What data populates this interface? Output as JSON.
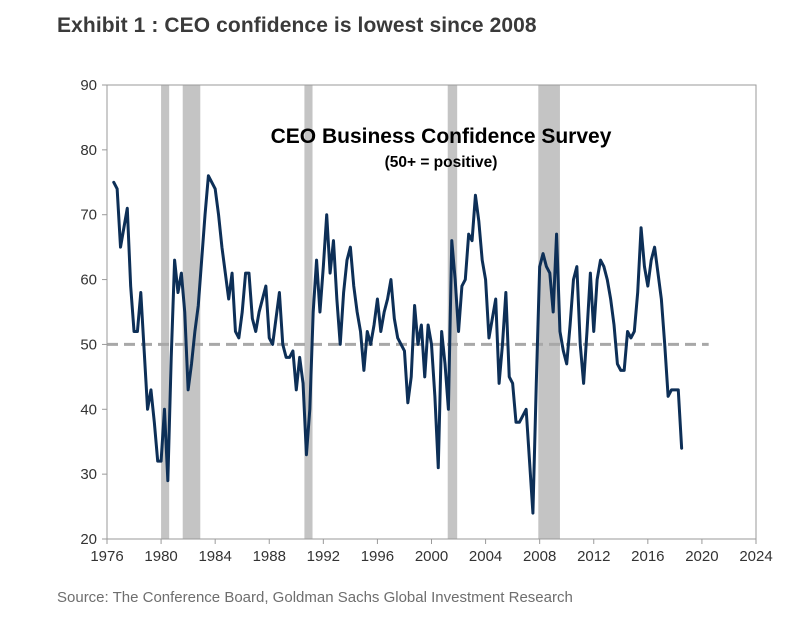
{
  "header": {
    "exhibit_title": "Exhibit 1 : CEO confidence is lowest since 2008"
  },
  "footer": {
    "source": "Source: The Conference Board, Goldman Sachs Global Investment Research"
  },
  "colors": {
    "line": "#0d2f57",
    "recession": "#c4c4c4",
    "reference": "#a8a8a8",
    "frame": "#9a9a9a"
  },
  "chart_data": {
    "type": "line",
    "title": "CEO Business Confidence Survey",
    "subtitle": "(50+ = positive)",
    "xlim": [
      1976,
      2024
    ],
    "ylim": [
      20,
      90
    ],
    "x_ticks": [
      1976,
      1980,
      1984,
      1988,
      1992,
      1996,
      2000,
      2004,
      2008,
      2012,
      2016,
      2020,
      2024
    ],
    "y_ticks": [
      20,
      30,
      40,
      50,
      60,
      70,
      80,
      90
    ],
    "grid": false,
    "reference_line": 50,
    "recession_shading": [
      [
        1980.0,
        1980.6
      ],
      [
        1981.6,
        1982.9
      ],
      [
        1990.6,
        1991.2
      ],
      [
        2001.2,
        2001.9
      ],
      [
        2007.9,
        2009.5
      ]
    ],
    "series": [
      {
        "values": [
          [
            1976.5,
            75
          ],
          [
            1976.75,
            74
          ],
          [
            1977.0,
            65
          ],
          [
            1977.25,
            68
          ],
          [
            1977.5,
            71
          ],
          [
            1977.75,
            59
          ],
          [
            1978.0,
            52
          ],
          [
            1978.25,
            52
          ],
          [
            1978.5,
            58
          ],
          [
            1978.75,
            49
          ],
          [
            1979.0,
            40
          ],
          [
            1979.25,
            43
          ],
          [
            1979.5,
            38
          ],
          [
            1979.75,
            32
          ],
          [
            1980.0,
            32
          ],
          [
            1980.25,
            40
          ],
          [
            1980.5,
            29
          ],
          [
            1980.75,
            48
          ],
          [
            1981.0,
            63
          ],
          [
            1981.25,
            58
          ],
          [
            1981.5,
            61
          ],
          [
            1981.75,
            55
          ],
          [
            1982.0,
            43
          ],
          [
            1982.25,
            47
          ],
          [
            1982.5,
            52
          ],
          [
            1982.75,
            56
          ],
          [
            1983.0,
            63
          ],
          [
            1983.25,
            70
          ],
          [
            1983.5,
            76
          ],
          [
            1983.75,
            75
          ],
          [
            1984.0,
            74
          ],
          [
            1984.25,
            70
          ],
          [
            1984.5,
            65
          ],
          [
            1984.75,
            61
          ],
          [
            1985.0,
            57
          ],
          [
            1985.25,
            61
          ],
          [
            1985.5,
            52
          ],
          [
            1985.75,
            51
          ],
          [
            1986.0,
            55
          ],
          [
            1986.25,
            61
          ],
          [
            1986.5,
            61
          ],
          [
            1986.75,
            54
          ],
          [
            1987.0,
            52
          ],
          [
            1987.25,
            55
          ],
          [
            1987.5,
            57
          ],
          [
            1987.75,
            59
          ],
          [
            1988.0,
            51
          ],
          [
            1988.25,
            50
          ],
          [
            1988.5,
            54
          ],
          [
            1988.75,
            58
          ],
          [
            1989.0,
            50
          ],
          [
            1989.25,
            48
          ],
          [
            1989.5,
            48
          ],
          [
            1989.75,
            49
          ],
          [
            1990.0,
            43
          ],
          [
            1990.25,
            48
          ],
          [
            1990.5,
            44
          ],
          [
            1990.75,
            33
          ],
          [
            1991.0,
            40
          ],
          [
            1991.25,
            55
          ],
          [
            1991.5,
            63
          ],
          [
            1991.75,
            55
          ],
          [
            1992.0,
            62
          ],
          [
            1992.25,
            70
          ],
          [
            1992.5,
            61
          ],
          [
            1992.75,
            66
          ],
          [
            1993.0,
            57
          ],
          [
            1993.25,
            50
          ],
          [
            1993.5,
            58
          ],
          [
            1993.75,
            63
          ],
          [
            1994.0,
            65
          ],
          [
            1994.25,
            59
          ],
          [
            1994.5,
            55
          ],
          [
            1994.75,
            52
          ],
          [
            1995.0,
            46
          ],
          [
            1995.25,
            52
          ],
          [
            1995.5,
            50
          ],
          [
            1995.75,
            53
          ],
          [
            1996.0,
            57
          ],
          [
            1996.25,
            52
          ],
          [
            1996.5,
            55
          ],
          [
            1996.75,
            57
          ],
          [
            1997.0,
            60
          ],
          [
            1997.25,
            54
          ],
          [
            1997.5,
            51
          ],
          [
            1997.75,
            50
          ],
          [
            1998.0,
            49
          ],
          [
            1998.25,
            41
          ],
          [
            1998.5,
            45
          ],
          [
            1998.75,
            56
          ],
          [
            1999.0,
            50
          ],
          [
            1999.25,
            53
          ],
          [
            1999.5,
            45
          ],
          [
            1999.75,
            53
          ],
          [
            2000.0,
            50
          ],
          [
            2000.25,
            42
          ],
          [
            2000.5,
            31
          ],
          [
            2000.75,
            52
          ],
          [
            2001.0,
            47
          ],
          [
            2001.25,
            40
          ],
          [
            2001.5,
            66
          ],
          [
            2001.75,
            60
          ],
          [
            2002.0,
            52
          ],
          [
            2002.25,
            59
          ],
          [
            2002.5,
            60
          ],
          [
            2002.75,
            67
          ],
          [
            2003.0,
            66
          ],
          [
            2003.25,
            73
          ],
          [
            2003.5,
            69
          ],
          [
            2003.75,
            63
          ],
          [
            2004.0,
            60
          ],
          [
            2004.25,
            51
          ],
          [
            2004.5,
            54
          ],
          [
            2004.75,
            57
          ],
          [
            2005.0,
            44
          ],
          [
            2005.25,
            50
          ],
          [
            2005.5,
            58
          ],
          [
            2005.75,
            45
          ],
          [
            2006.0,
            44
          ],
          [
            2006.25,
            38
          ],
          [
            2006.5,
            38
          ],
          [
            2006.75,
            39
          ],
          [
            2007.0,
            40
          ],
          [
            2007.25,
            32
          ],
          [
            2007.5,
            24
          ],
          [
            2007.75,
            44
          ],
          [
            2008.0,
            62
          ],
          [
            2008.25,
            64
          ],
          [
            2008.5,
            62
          ],
          [
            2008.75,
            61
          ],
          [
            2009.0,
            55
          ],
          [
            2009.25,
            67
          ],
          [
            2009.5,
            52
          ],
          [
            2009.75,
            49
          ],
          [
            2010.0,
            47
          ],
          [
            2010.25,
            53
          ],
          [
            2010.5,
            60
          ],
          [
            2010.75,
            62
          ],
          [
            2011.0,
            50
          ],
          [
            2011.25,
            44
          ],
          [
            2011.5,
            52
          ],
          [
            2011.75,
            61
          ],
          [
            2012.0,
            52
          ],
          [
            2012.25,
            60
          ],
          [
            2012.5,
            63
          ],
          [
            2012.75,
            62
          ],
          [
            2013.0,
            60
          ],
          [
            2013.25,
            57
          ],
          [
            2013.5,
            53
          ],
          [
            2013.75,
            47
          ],
          [
            2014.0,
            46
          ],
          [
            2014.25,
            46
          ],
          [
            2014.5,
            52
          ],
          [
            2014.75,
            51
          ],
          [
            2015.0,
            52
          ],
          [
            2015.25,
            58
          ],
          [
            2015.5,
            68
          ],
          [
            2015.75,
            62
          ],
          [
            2016.0,
            59
          ],
          [
            2016.25,
            63
          ],
          [
            2016.5,
            65
          ],
          [
            2016.75,
            61
          ],
          [
            2017.0,
            57
          ],
          [
            2017.25,
            50
          ],
          [
            2017.5,
            42
          ],
          [
            2017.75,
            43
          ],
          [
            2018.0,
            43
          ],
          [
            2018.25,
            43
          ],
          [
            2018.5,
            34
          ]
        ]
      }
    ]
  }
}
